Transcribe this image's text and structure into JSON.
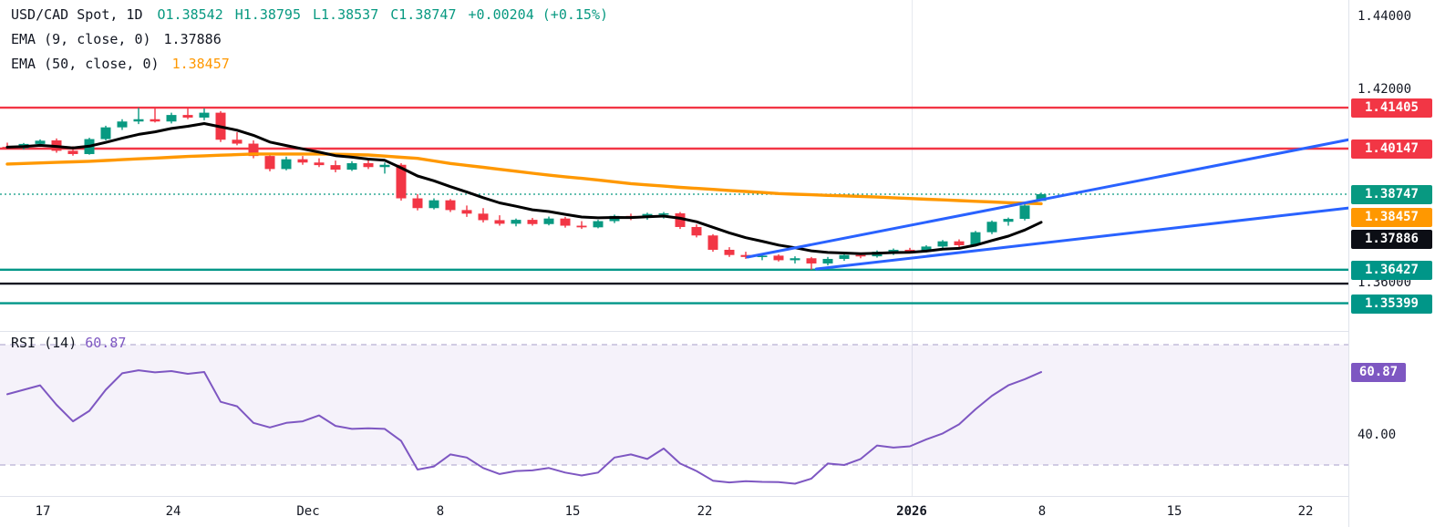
{
  "legend": {
    "title": "USD/CAD Spot, 1D",
    "open": "O1.38542",
    "high": "H1.38795",
    "low": "L1.38537",
    "close": "C1.38747",
    "change": "+0.00204 (+0.15%)",
    "ema9_label": "EMA (9, close, 0)",
    "ema9_value": "1.37886",
    "ema50_label": "EMA (50, close, 0)",
    "ema50_value": "1.38457"
  },
  "price_axis": {
    "plain_labels": [
      {
        "text": "1.44000"
      },
      {
        "text": "1.42000"
      },
      {
        "text": "1.36000"
      }
    ],
    "badges": [
      {
        "text": "1.41405",
        "color": "#f23645"
      },
      {
        "text": "1.40147",
        "color": "#f23645"
      },
      {
        "text": "1.38747",
        "color": "#089981"
      },
      {
        "text": "1.38457",
        "color": "#ff9800"
      },
      {
        "text": "1.37886",
        "color": "#0c0e15"
      },
      {
        "text": "1.36427",
        "color": "#009688"
      },
      {
        "text": "1.35399",
        "color": "#009688"
      }
    ]
  },
  "rsi_panel": {
    "label": "RSI (14)",
    "value": "60.87",
    "badge": "60.87",
    "badge_color": "#7e57c2",
    "axis_label": "40.00"
  },
  "time_axis": [
    {
      "text": "17"
    },
    {
      "text": "24"
    },
    {
      "text": "Dec"
    },
    {
      "text": "8"
    },
    {
      "text": "15"
    },
    {
      "text": "22"
    },
    {
      "text": "2026"
    },
    {
      "text": "8"
    },
    {
      "text": "15"
    },
    {
      "text": "22"
    }
  ],
  "chart_data": {
    "type": "candlestick",
    "title": "USD/CAD Spot, 1D",
    "last": {
      "open": 1.38542,
      "high": 1.38795,
      "low": 1.38537,
      "close": 1.38747,
      "change": 0.00204,
      "change_pct": 0.15
    },
    "y_axis_visible_range": [
      1.3455,
      1.4471
    ],
    "rsi_bands": {
      "upper": 70,
      "lower": 30,
      "tick": 40,
      "current": 60.87
    },
    "colors": {
      "up": "#089981",
      "down": "#f23645",
      "ema9": "#000000",
      "ema50": "#ff9800",
      "rsi": "#7e57c2",
      "trend": "#2962ff",
      "resistance": "#f23645",
      "support": "#009688"
    },
    "levels": [
      {
        "price": 1.41405,
        "color": "#f23645",
        "style": "solid",
        "role": "resistance"
      },
      {
        "price": 1.40147,
        "color": "#f23645",
        "style": "solid",
        "role": "resistance"
      },
      {
        "price": 1.38747,
        "color": "#089981",
        "style": "dotted",
        "role": "last-price"
      },
      {
        "price": 1.36427,
        "color": "#009688",
        "style": "solid",
        "role": "support"
      },
      {
        "price": 1.36,
        "color": "#131722",
        "style": "solid",
        "role": "level"
      },
      {
        "price": 1.35399,
        "color": "#009688",
        "style": "solid",
        "role": "support"
      }
    ],
    "trendlines": [
      {
        "i1": 45.1,
        "p1": 1.36815,
        "i2": 81.8,
        "p2": 1.40427,
        "color": "#2962ff"
      },
      {
        "i1": 49.3,
        "p1": 1.36451,
        "i2": 81.8,
        "p2": 1.38327,
        "color": "#2962ff"
      }
    ],
    "ohlc": [
      [
        1.402,
        1.4033,
        1.4013,
        1.4016
      ],
      [
        1.4016,
        1.4032,
        1.4012,
        1.4029
      ],
      [
        1.4029,
        1.4043,
        1.4022,
        1.4039
      ],
      [
        1.404,
        1.4046,
        1.4002,
        1.4008
      ],
      [
        1.4008,
        1.4022,
        1.3993,
        1.3998
      ],
      [
        1.3998,
        1.4048,
        1.3996,
        1.4044
      ],
      [
        1.4044,
        1.4085,
        1.404,
        1.408
      ],
      [
        1.408,
        1.4105,
        1.4072,
        1.4098
      ],
      [
        1.4098,
        1.414,
        1.409,
        1.4105
      ],
      [
        1.4105,
        1.4142,
        1.4095,
        1.4098
      ],
      [
        1.4098,
        1.4125,
        1.4092,
        1.4118
      ],
      [
        1.4118,
        1.414,
        1.4105,
        1.411
      ],
      [
        1.411,
        1.4138,
        1.4102,
        1.4125
      ],
      [
        1.4125,
        1.413,
        1.4035,
        1.4042
      ],
      [
        1.4042,
        1.4065,
        1.4025,
        1.403
      ],
      [
        1.403,
        1.404,
        1.3985,
        1.3992
      ],
      [
        1.3992,
        1.4,
        1.3945,
        1.3952
      ],
      [
        1.3952,
        1.399,
        1.3948,
        1.3982
      ],
      [
        1.3982,
        1.3992,
        1.3965,
        1.3972
      ],
      [
        1.3972,
        1.3985,
        1.3958,
        1.3964
      ],
      [
        1.3964,
        1.3978,
        1.3942,
        1.395
      ],
      [
        1.395,
        1.3976,
        1.3946,
        1.397
      ],
      [
        1.397,
        1.398,
        1.3952,
        1.3958
      ],
      [
        1.3958,
        1.3972,
        1.3938,
        1.3965
      ],
      [
        1.3965,
        1.397,
        1.3855,
        1.3862
      ],
      [
        1.3862,
        1.3875,
        1.3825,
        1.3832
      ],
      [
        1.3832,
        1.3862,
        1.3828,
        1.3856
      ],
      [
        1.3856,
        1.386,
        1.382,
        1.3826
      ],
      [
        1.3826,
        1.384,
        1.3805,
        1.3815
      ],
      [
        1.3815,
        1.3832,
        1.3788,
        1.3795
      ],
      [
        1.3795,
        1.381,
        1.3778,
        1.3784
      ],
      [
        1.3784,
        1.38,
        1.3776,
        1.3796
      ],
      [
        1.3796,
        1.3802,
        1.3778,
        1.3783
      ],
      [
        1.3783,
        1.3806,
        1.3779,
        1.38
      ],
      [
        1.38,
        1.3805,
        1.3772,
        1.3778
      ],
      [
        1.3778,
        1.3792,
        1.3768,
        1.3773
      ],
      [
        1.3773,
        1.3796,
        1.377,
        1.3792
      ],
      [
        1.3792,
        1.3812,
        1.3786,
        1.3808
      ],
      [
        1.3808,
        1.3815,
        1.3795,
        1.3802
      ],
      [
        1.3802,
        1.3818,
        1.3796,
        1.3814
      ],
      [
        1.3814,
        1.382,
        1.38,
        1.3816
      ],
      [
        1.3816,
        1.382,
        1.3768,
        1.3774
      ],
      [
        1.3774,
        1.3782,
        1.3742,
        1.3748
      ],
      [
        1.3748,
        1.3752,
        1.3698,
        1.3704
      ],
      [
        1.3704,
        1.3712,
        1.3682,
        1.3688
      ],
      [
        1.3688,
        1.3698,
        1.3676,
        1.3682
      ],
      [
        1.3682,
        1.3692,
        1.3672,
        1.3686
      ],
      [
        1.3686,
        1.369,
        1.3668,
        1.3672
      ],
      [
        1.3672,
        1.3684,
        1.3662,
        1.3678
      ],
      [
        1.3678,
        1.3682,
        1.3643,
        1.3662
      ],
      [
        1.3662,
        1.3682,
        1.3656,
        1.3676
      ],
      [
        1.3676,
        1.3692,
        1.367,
        1.3688
      ],
      [
        1.3688,
        1.3694,
        1.3678,
        1.3684
      ],
      [
        1.3684,
        1.3702,
        1.368,
        1.3698
      ],
      [
        1.3698,
        1.3708,
        1.3688,
        1.3704
      ],
      [
        1.3704,
        1.371,
        1.3694,
        1.37
      ],
      [
        1.37,
        1.3718,
        1.3696,
        1.3714
      ],
      [
        1.3714,
        1.3734,
        1.3708,
        1.373
      ],
      [
        1.373,
        1.3736,
        1.3712,
        1.3718
      ],
      [
        1.3718,
        1.3762,
        1.3714,
        1.3758
      ],
      [
        1.3758,
        1.3794,
        1.3752,
        1.379
      ],
      [
        1.379,
        1.3803,
        1.3778,
        1.3799
      ],
      [
        1.3799,
        1.3845,
        1.3794,
        1.384
      ],
      [
        1.38542,
        1.38795,
        1.38537,
        1.38747
      ]
    ],
    "ema9": [
      1.40192,
      1.40212,
      1.40248,
      1.40214,
      1.40167,
      1.40222,
      1.40338,
      1.40466,
      1.40583,
      1.40662,
      1.40766,
      1.40833,
      1.40916,
      1.40817,
      1.40713,
      1.40555,
      1.40348,
      1.40242,
      1.40138,
      1.40038,
      1.39931,
      1.39885,
      1.39824,
      1.39789,
      1.39555,
      1.39308,
      1.39158,
      1.38979,
      1.38813,
      1.3864,
      1.3848,
      1.38376,
      1.38267,
      1.38214,
      1.38127,
      1.38048,
      1.38022,
      1.38034,
      1.38031,
      1.38053,
      1.38074,
      1.38007,
      1.37902,
      1.3773,
      1.3756,
      1.37412,
      1.37301,
      1.37185,
      1.37104,
      1.37007,
      1.36958,
      1.36942,
      1.36922,
      1.36933,
      1.36955,
      1.36964,
      1.36999,
      1.37059,
      1.37083,
      1.37183,
      1.37326,
      1.37459,
      1.37647,
      1.37886
    ],
    "ema50": [
      1.39674,
      1.39691,
      1.39707,
      1.39724,
      1.3974,
      1.39757,
      1.39782,
      1.39807,
      1.39832,
      1.39856,
      1.39881,
      1.39906,
      1.39925,
      1.39944,
      1.39963,
      1.39982,
      1.39982,
      1.39982,
      1.39982,
      1.39982,
      1.39972,
      1.39961,
      1.39951,
      1.39917,
      1.39882,
      1.39848,
      1.3977,
      1.39691,
      1.39631,
      1.39572,
      1.39512,
      1.39452,
      1.39392,
      1.39333,
      1.39283,
      1.39233,
      1.39184,
      1.39128,
      1.39072,
      1.39034,
      1.38995,
      1.38957,
      1.38925,
      1.38894,
      1.38862,
      1.3883,
      1.38799,
      1.38767,
      1.38748,
      1.3873,
      1.38711,
      1.38696,
      1.3868,
      1.38659,
      1.38637,
      1.38616,
      1.38594,
      1.38573,
      1.38551,
      1.3853,
      1.38508,
      1.38487,
      1.38472,
      1.38457
    ],
    "rsi14": [
      53.5,
      55.0,
      56.5,
      50.0,
      44.5,
      48.0,
      55.0,
      60.5,
      61.5,
      60.8,
      61.2,
      60.3,
      60.9,
      51.0,
      49.5,
      44.0,
      42.5,
      44.0,
      44.5,
      46.5,
      43.0,
      42.0,
      42.2,
      42.0,
      38.0,
      28.5,
      29.5,
      33.5,
      32.5,
      29.0,
      27.0,
      28.0,
      28.2,
      29.0,
      27.5,
      26.5,
      27.5,
      32.5,
      33.5,
      32.0,
      35.5,
      30.5,
      28.0,
      24.8,
      24.2,
      24.6,
      24.4,
      24.3,
      23.8,
      25.5,
      30.5,
      30.0,
      32.0,
      36.5,
      35.8,
      36.2,
      38.5,
      40.5,
      43.5,
      48.5,
      53.0,
      56.5,
      58.5,
      60.87
    ]
  }
}
